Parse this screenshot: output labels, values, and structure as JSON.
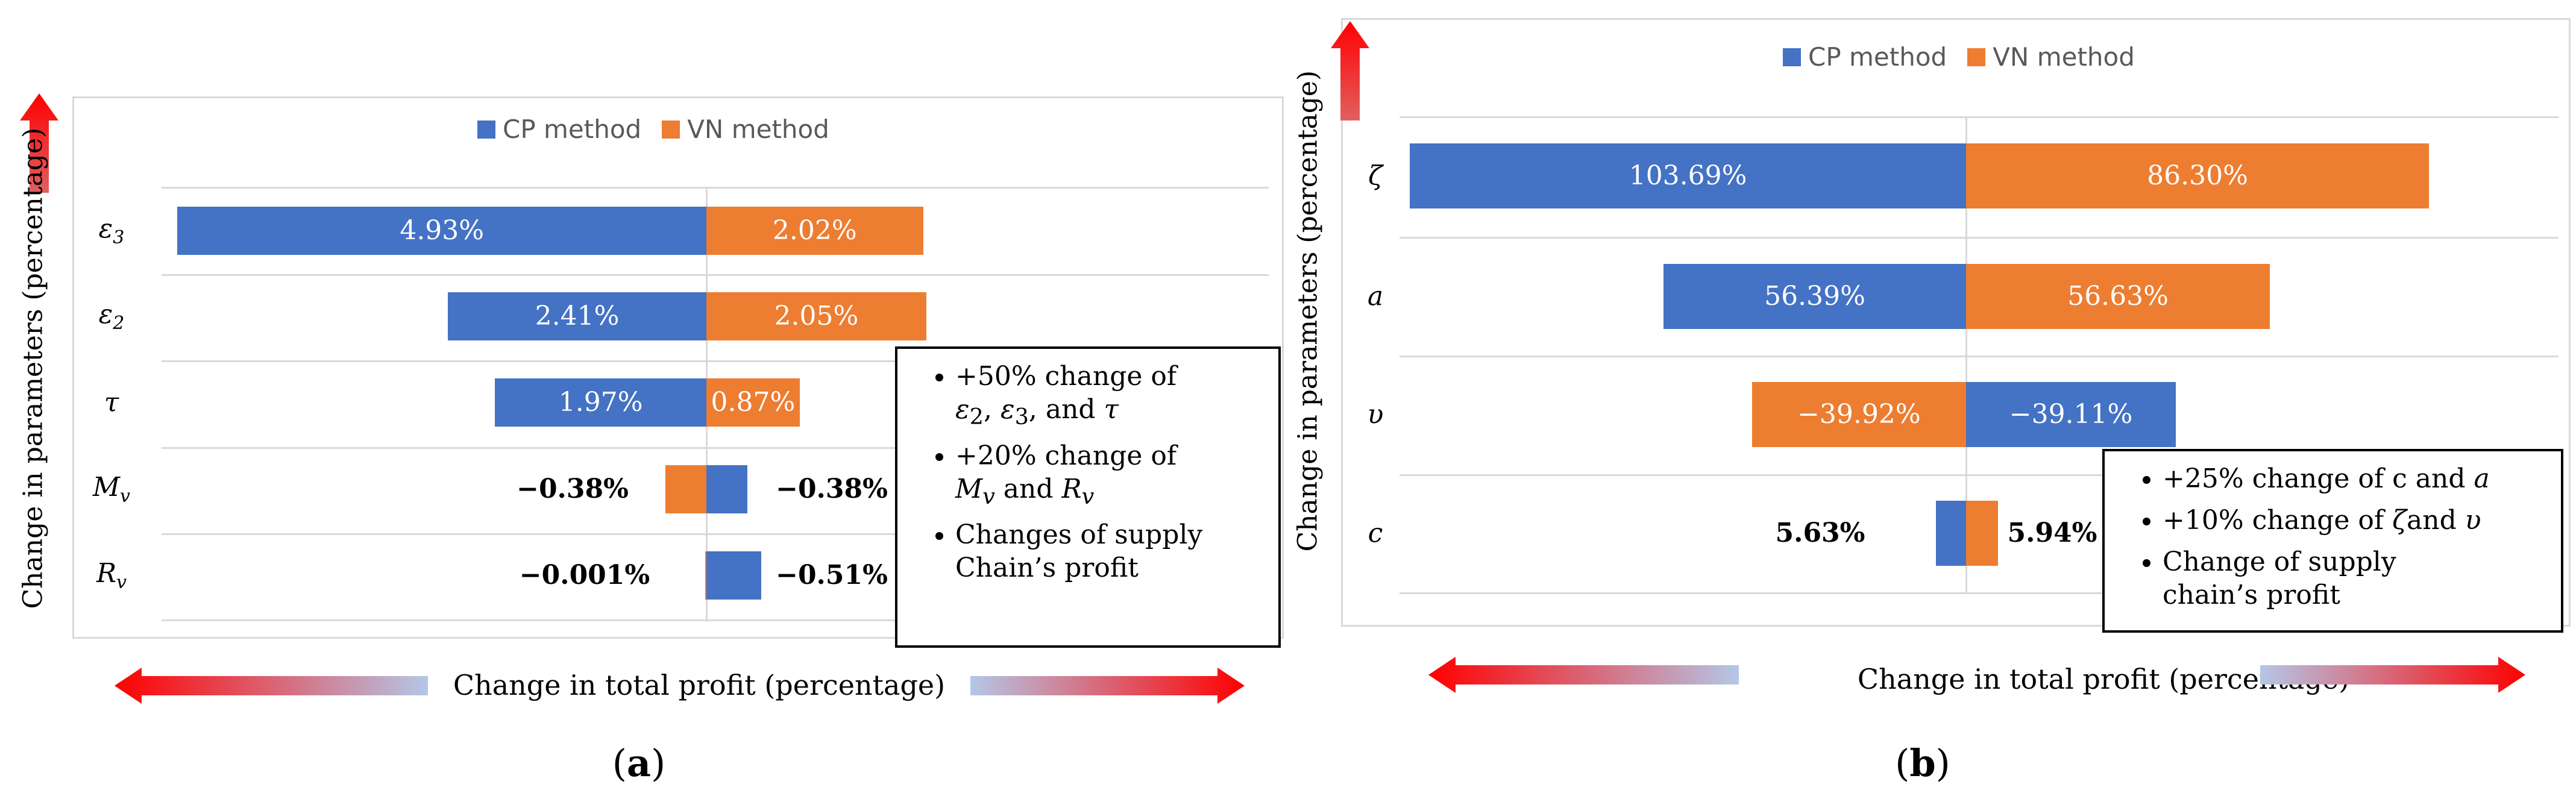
{
  "panels": [
    {
      "label": "a",
      "legend": [
        "CP method",
        "VN method"
      ],
      "yaxis_title": "Change in parameters (percentage)",
      "xaxis_title": "Change in total profit (percentage)",
      "notes": [
        "+50% change of",
        "ε2, ε3, and τ",
        "+20% change of",
        "Mv and Rv",
        "Changes of supply",
        "Chain’s profit"
      ]
    },
    {
      "label": "b",
      "legend": [
        "CP method",
        "VN method"
      ],
      "yaxis_title": "Change in parameters (percentage)",
      "xaxis_title": "Change in total profit (percentage)",
      "notes": [
        "+25% change of c and a",
        "+10% change of ζand υ",
        "Change of supply",
        "chain’s profit"
      ]
    }
  ],
  "chart_data": [
    {
      "type": "bar",
      "orientation": "horizontal",
      "title": "",
      "xlabel": "Change in total profit (percentage)",
      "ylabel": "Change in parameters (percentage)",
      "categories": [
        "ε3",
        "ε2",
        "τ",
        "Mv",
        "Rv"
      ],
      "series": [
        {
          "name": "CP method",
          "color": "#4472c4",
          "values": [
            4.93,
            2.41,
            1.97,
            -0.38,
            -0.51
          ],
          "labels": [
            "4.93%",
            "2.41%",
            "1.97%",
            "−0.38%",
            "−0.51%"
          ],
          "direction": [
            "left",
            "left",
            "left",
            "right",
            "right"
          ]
        },
        {
          "name": "VN method",
          "color": "#ed7d31",
          "values": [
            2.02,
            2.05,
            0.87,
            -0.38,
            -0.001
          ],
          "labels": [
            "2.02%",
            "2.05%",
            "0.87%",
            "−0.38%",
            "−0.001%"
          ],
          "direction": [
            "right",
            "right",
            "right",
            "left",
            "left"
          ]
        }
      ],
      "legend_position": "top"
    },
    {
      "type": "bar",
      "orientation": "horizontal",
      "title": "",
      "xlabel": "Change in total profit (percentage)",
      "ylabel": "Change in parameters (percentage)",
      "categories": [
        "ζ",
        "a",
        "υ",
        "c"
      ],
      "series": [
        {
          "name": "CP method",
          "color": "#4472c4",
          "values": [
            103.69,
            56.39,
            -39.11,
            5.63
          ],
          "labels": [
            "103.69%",
            "56.39%",
            "−39.11%",
            "5.63%"
          ],
          "direction": [
            "left",
            "left",
            "right",
            "left"
          ]
        },
        {
          "name": "VN method",
          "color": "#ed7d31",
          "values": [
            86.3,
            56.63,
            -39.92,
            5.94
          ],
          "labels": [
            "86.30%",
            "56.63%",
            "−39.92%",
            "5.94%"
          ],
          "direction": [
            "right",
            "right",
            "left",
            "right"
          ]
        }
      ],
      "legend_position": "top"
    }
  ]
}
